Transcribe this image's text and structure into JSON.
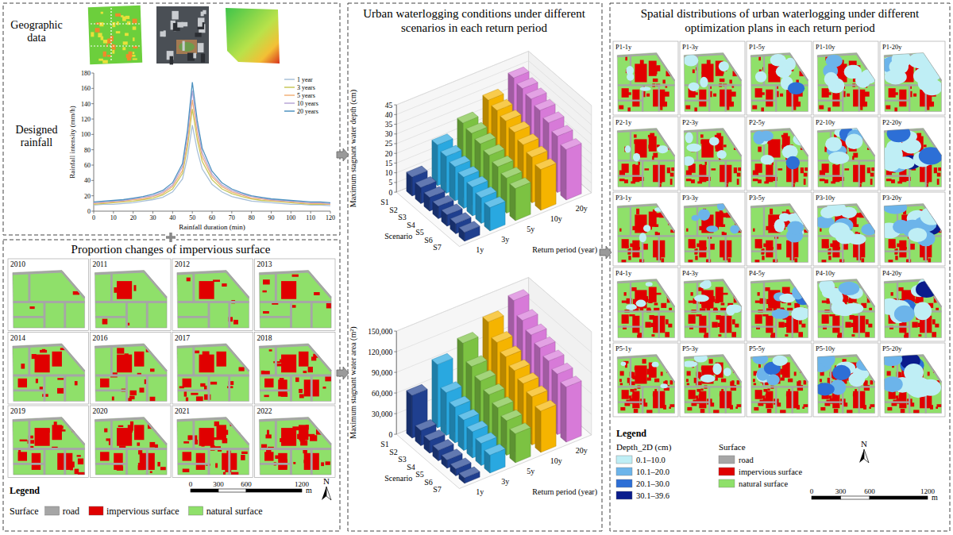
{
  "geographic_label": "Geographic data",
  "rainfall_label": "Designed rainfall",
  "chart_data": [
    {
      "type": "line",
      "x_label": "Rainfall duration (min)",
      "y_label": "Rainfall intensity (mm/h)",
      "x": [
        0,
        5,
        10,
        15,
        20,
        25,
        30,
        35,
        40,
        45,
        47.5,
        50,
        52.5,
        55,
        60,
        65,
        70,
        75,
        80,
        85,
        90,
        95,
        100,
        105,
        110,
        115,
        120
      ],
      "series": [
        {
          "name": "1 year",
          "color": "#a8c0d8",
          "values": [
            8,
            9,
            9,
            10,
            11,
            13,
            15,
            18,
            25,
            42,
            70,
            112,
            79,
            55,
            35,
            25,
            19,
            16,
            13,
            12,
            11,
            10,
            9,
            9,
            8,
            8,
            7
          ]
        },
        {
          "name": "3 years",
          "color": "#c8c85a",
          "values": [
            9,
            10,
            11,
            12,
            13,
            15,
            17,
            21,
            29,
            49,
            83,
            133,
            93,
            65,
            41,
            29,
            23,
            19,
            16,
            14,
            13,
            12,
            11,
            10,
            9,
            9,
            9
          ]
        },
        {
          "name": "5 years",
          "color": "#f2b27a",
          "values": [
            10,
            11,
            12,
            13,
            15,
            16,
            19,
            23,
            32,
            53,
            90,
            145,
            101,
            71,
            45,
            32,
            25,
            21,
            17,
            16,
            14,
            13,
            12,
            11,
            10,
            10,
            9
          ]
        },
        {
          "name": "10 years",
          "color": "#b9a7d6",
          "values": [
            11,
            12,
            13,
            14,
            16,
            18,
            20,
            25,
            34,
            58,
            98,
            157,
            110,
            76,
            48,
            34,
            27,
            22,
            19,
            17,
            15,
            14,
            13,
            12,
            11,
            11,
            10
          ]
        },
        {
          "name": "20 years",
          "color": "#4f93c0",
          "values": [
            12,
            13,
            14,
            15,
            17,
            19,
            22,
            27,
            37,
            62,
            105,
            168,
            118,
            82,
            52,
            37,
            29,
            24,
            20,
            18,
            16,
            15,
            14,
            13,
            12,
            12,
            11
          ]
        }
      ],
      "xlim": [
        0,
        120
      ],
      "xticks": [
        0,
        10,
        20,
        30,
        40,
        50,
        60,
        70,
        80,
        90,
        100,
        110,
        120
      ],
      "ylim": [
        0,
        180
      ],
      "yticks": [
        0,
        20,
        40,
        60,
        80,
        100,
        120,
        140,
        160,
        180
      ],
      "legend": "upper right",
      "grid": false
    },
    {
      "type": "bar3d",
      "y_label": "Maximum stagnant water depth (cm)",
      "x_label": "Scenario",
      "z_label": "Return period (year)",
      "categories": [
        "S1",
        "S2",
        "S3",
        "S4",
        "S5",
        "S6",
        "S7"
      ],
      "series": [
        {
          "name": "1y",
          "color": "#1f3f8f",
          "values": [
            9.8,
            8.2,
            7.0,
            6.3,
            5.8,
            5.2,
            4.6
          ]
        },
        {
          "name": "3y",
          "color": "#29a8e0",
          "values": [
            21.0,
            19.0,
            17.5,
            16.0,
            14.8,
            13.2,
            12.0
          ]
        },
        {
          "name": "5y",
          "color": "#7cc242",
          "values": [
            27.0,
            25.5,
            24.0,
            22.0,
            20.0,
            18.0,
            16.5
          ]
        },
        {
          "name": "10y",
          "color": "#f5b400",
          "values": [
            33.5,
            32.0,
            30.5,
            28.5,
            26.0,
            23.5,
            21.0
          ]
        },
        {
          "name": "20y",
          "color": "#d77ad8",
          "values": [
            39.6,
            38.0,
            36.5,
            34.5,
            32.0,
            29.0,
            26.0
          ]
        }
      ],
      "ylim": [
        0,
        45
      ],
      "yticks": [
        0,
        5,
        10,
        15,
        20,
        25,
        30,
        35,
        40,
        45
      ],
      "grid": true
    },
    {
      "type": "bar3d",
      "y_label": "Maximum stagnant water area (m²)",
      "x_label": "Scenario",
      "z_label": "Return period (year)",
      "categories": [
        "S1",
        "S2",
        "S3",
        "S4",
        "S5",
        "S6",
        "S7"
      ],
      "series": [
        {
          "name": "1y",
          "color": "#1f3f8f",
          "values": [
            62000,
            22000,
            18000,
            15000,
            12000,
            10000,
            8000
          ]
        },
        {
          "name": "3y",
          "color": "#29a8e0",
          "values": [
            92000,
            62000,
            52000,
            44000,
            38000,
            32000,
            26000
          ]
        },
        {
          "name": "5y",
          "color": "#7cc242",
          "values": [
            108000,
            85000,
            75000,
            66000,
            58000,
            50000,
            42000
          ]
        },
        {
          "name": "10y",
          "color": "#f5b400",
          "values": [
            124000,
            105000,
            95000,
            86000,
            78000,
            70000,
            60000
          ]
        },
        {
          "name": "20y",
          "color": "#d77ad8",
          "values": [
            140000,
            122000,
            112000,
            104000,
            96000,
            88000,
            80000
          ]
        }
      ],
      "ylim": [
        0,
        150000
      ],
      "yticks": [
        0,
        {
          "value": 30000,
          "label": "30,000"
        },
        {
          "value": 60000,
          "label": "60,000"
        },
        {
          "value": 90000,
          "label": "90,000"
        },
        {
          "value": 120000,
          "label": "120,000"
        },
        {
          "value": 150000,
          "label": "150,000"
        }
      ],
      "grid": true
    }
  ],
  "waterlogging_title": "Urban waterlogging conditions under different scenarios in each return period",
  "impervious_panel": {
    "title": "Proportion changes of impervious surface",
    "years": [
      "2010",
      "2011",
      "2012",
      "2013",
      "2014",
      "2016",
      "2017",
      "2018",
      "2019",
      "2020",
      "2021",
      "2022"
    ]
  },
  "legend_left": {
    "title": "Legend",
    "surface_title": "Surface",
    "surfaces": [
      {
        "label": "road",
        "color": "#a6a6a6"
      },
      {
        "label": "impervious surface",
        "color": "#e00000"
      },
      {
        "label": "natural surface",
        "color": "#8fe06a"
      }
    ],
    "scale_ticks": [
      0,
      300,
      600,
      1200
    ],
    "scale_unit": "m",
    "north": "N"
  },
  "maps_panel": {
    "title": "Spatial distributions of urban waterlogging under different optimization plans in each return period",
    "labels": [
      [
        "P1-1y",
        "P1-3y",
        "P1-5y",
        "P1-10y",
        "P1-20y"
      ],
      [
        "P2-1y",
        "P2-3y",
        "P2-5y",
        "P2-10y",
        "P2-20y"
      ],
      [
        "P3-1y",
        "P3-3y",
        "P3-5y",
        "P3-10y",
        "P3-20y"
      ],
      [
        "P4-1y",
        "P4-3y",
        "P4-5y",
        "P4-10y",
        "P4-20y"
      ],
      [
        "P5-1y",
        "P5-3y",
        "P5-5y",
        "P5-10y",
        "P5-20y"
      ]
    ]
  },
  "legend_right": {
    "title": "Legend",
    "depth_title": "Depth_2D (cm)",
    "depth_classes": [
      {
        "label": "0.1–10.0",
        "color": "#bfeef5"
      },
      {
        "label": "10.1–20.0",
        "color": "#6cb4ea"
      },
      {
        "label": "20.1–30.0",
        "color": "#2d6fd6"
      },
      {
        "label": "30.1–39.6",
        "color": "#0a1c8c"
      }
    ],
    "surface_title": "Surface",
    "surfaces": [
      {
        "label": "road",
        "color": "#a6a6a6"
      },
      {
        "label": "impervious surface",
        "color": "#e00000"
      },
      {
        "label": "natural surface",
        "color": "#8fe06a"
      }
    ],
    "scale_ticks": [
      0,
      300,
      600,
      1200
    ],
    "scale_unit": "m",
    "north": "N"
  }
}
